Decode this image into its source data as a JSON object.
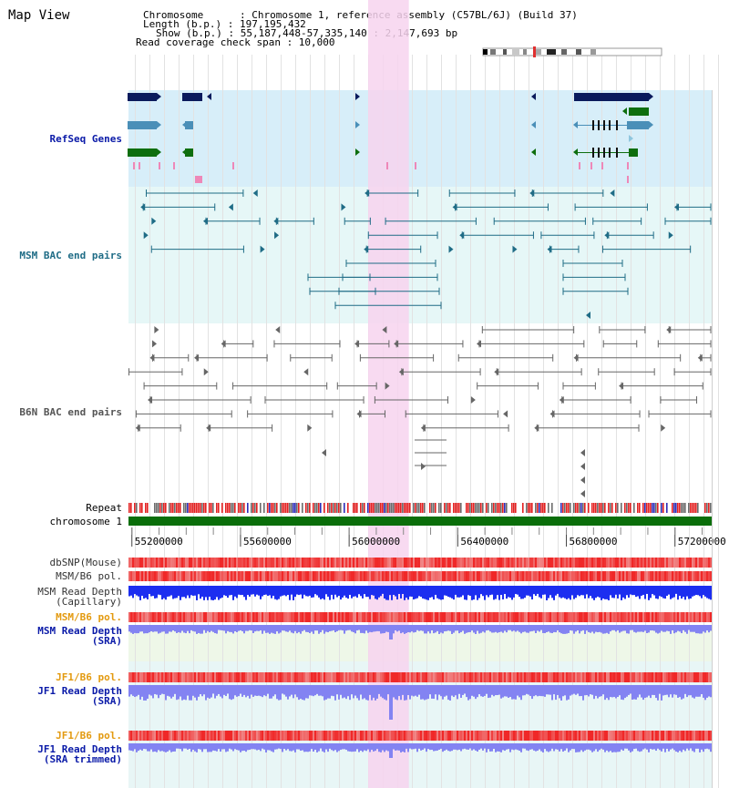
{
  "header": {
    "title": "Map View",
    "chromosome_line": "Chromosome      : Chromosome 1, reference assembly (C57BL/6J) (Build 37)",
    "length_line": "Length (b.p.) : 197,195,432",
    "show_line": "Show (b.p.) : 55,187,448-57,335,140 : 2,147,693 bp",
    "span_line": "Read coverage check span : 10,000"
  },
  "tracks": {
    "refseq": "RefSeq Genes",
    "msm_bac": "MSM BAC end pairs",
    "b6n_bac": "B6N BAC end pairs",
    "repeat": "Repeat",
    "chromosome": "chromosome 1",
    "dbsnp": "dbSNP(Mouse)",
    "msm_pol": "MSM/B6 pol.",
    "msm_depth_cap": "MSM Read Depth\n(Capillary)",
    "msm_pol2": "MSM/B6 pol.",
    "msm_depth_sra": "MSM Read Depth\n(SRA)",
    "jf1_pol": "JF1/B6 pol.",
    "jf1_depth_sra": "JF1 Read Depth\n(SRA)",
    "jf1_pol2": "JF1/B6 pol.",
    "jf1_depth_trim": "JF1 Read Depth\n(SRA trimmed)"
  },
  "axis": {
    "ticks": [
      "55200000",
      "55600000",
      "56000000",
      "56400000",
      "56800000",
      "57200000"
    ],
    "tick_values": [
      55200000,
      55600000,
      56000000,
      56400000,
      56800000,
      57200000
    ],
    "start": 55187448,
    "end": 57335140
  },
  "highlight": {
    "start": 56070000,
    "end": 56220000,
    "color": "#f7d3ef"
  },
  "colors": {
    "navy": "#0a1a5c",
    "teal": "#1f6c86",
    "gene_blue": "#4a8fb8",
    "gene_green": "#0e6e0e",
    "bac_gray": "#666666",
    "chromosome": "#0a6e0a",
    "refseq_bg": "#d7eef9",
    "msm_bg": "#e6f7f7",
    "depth_cap": "#1c2ef0",
    "depth_sra": "#8383f2",
    "pol_red": "#e23232"
  }
}
